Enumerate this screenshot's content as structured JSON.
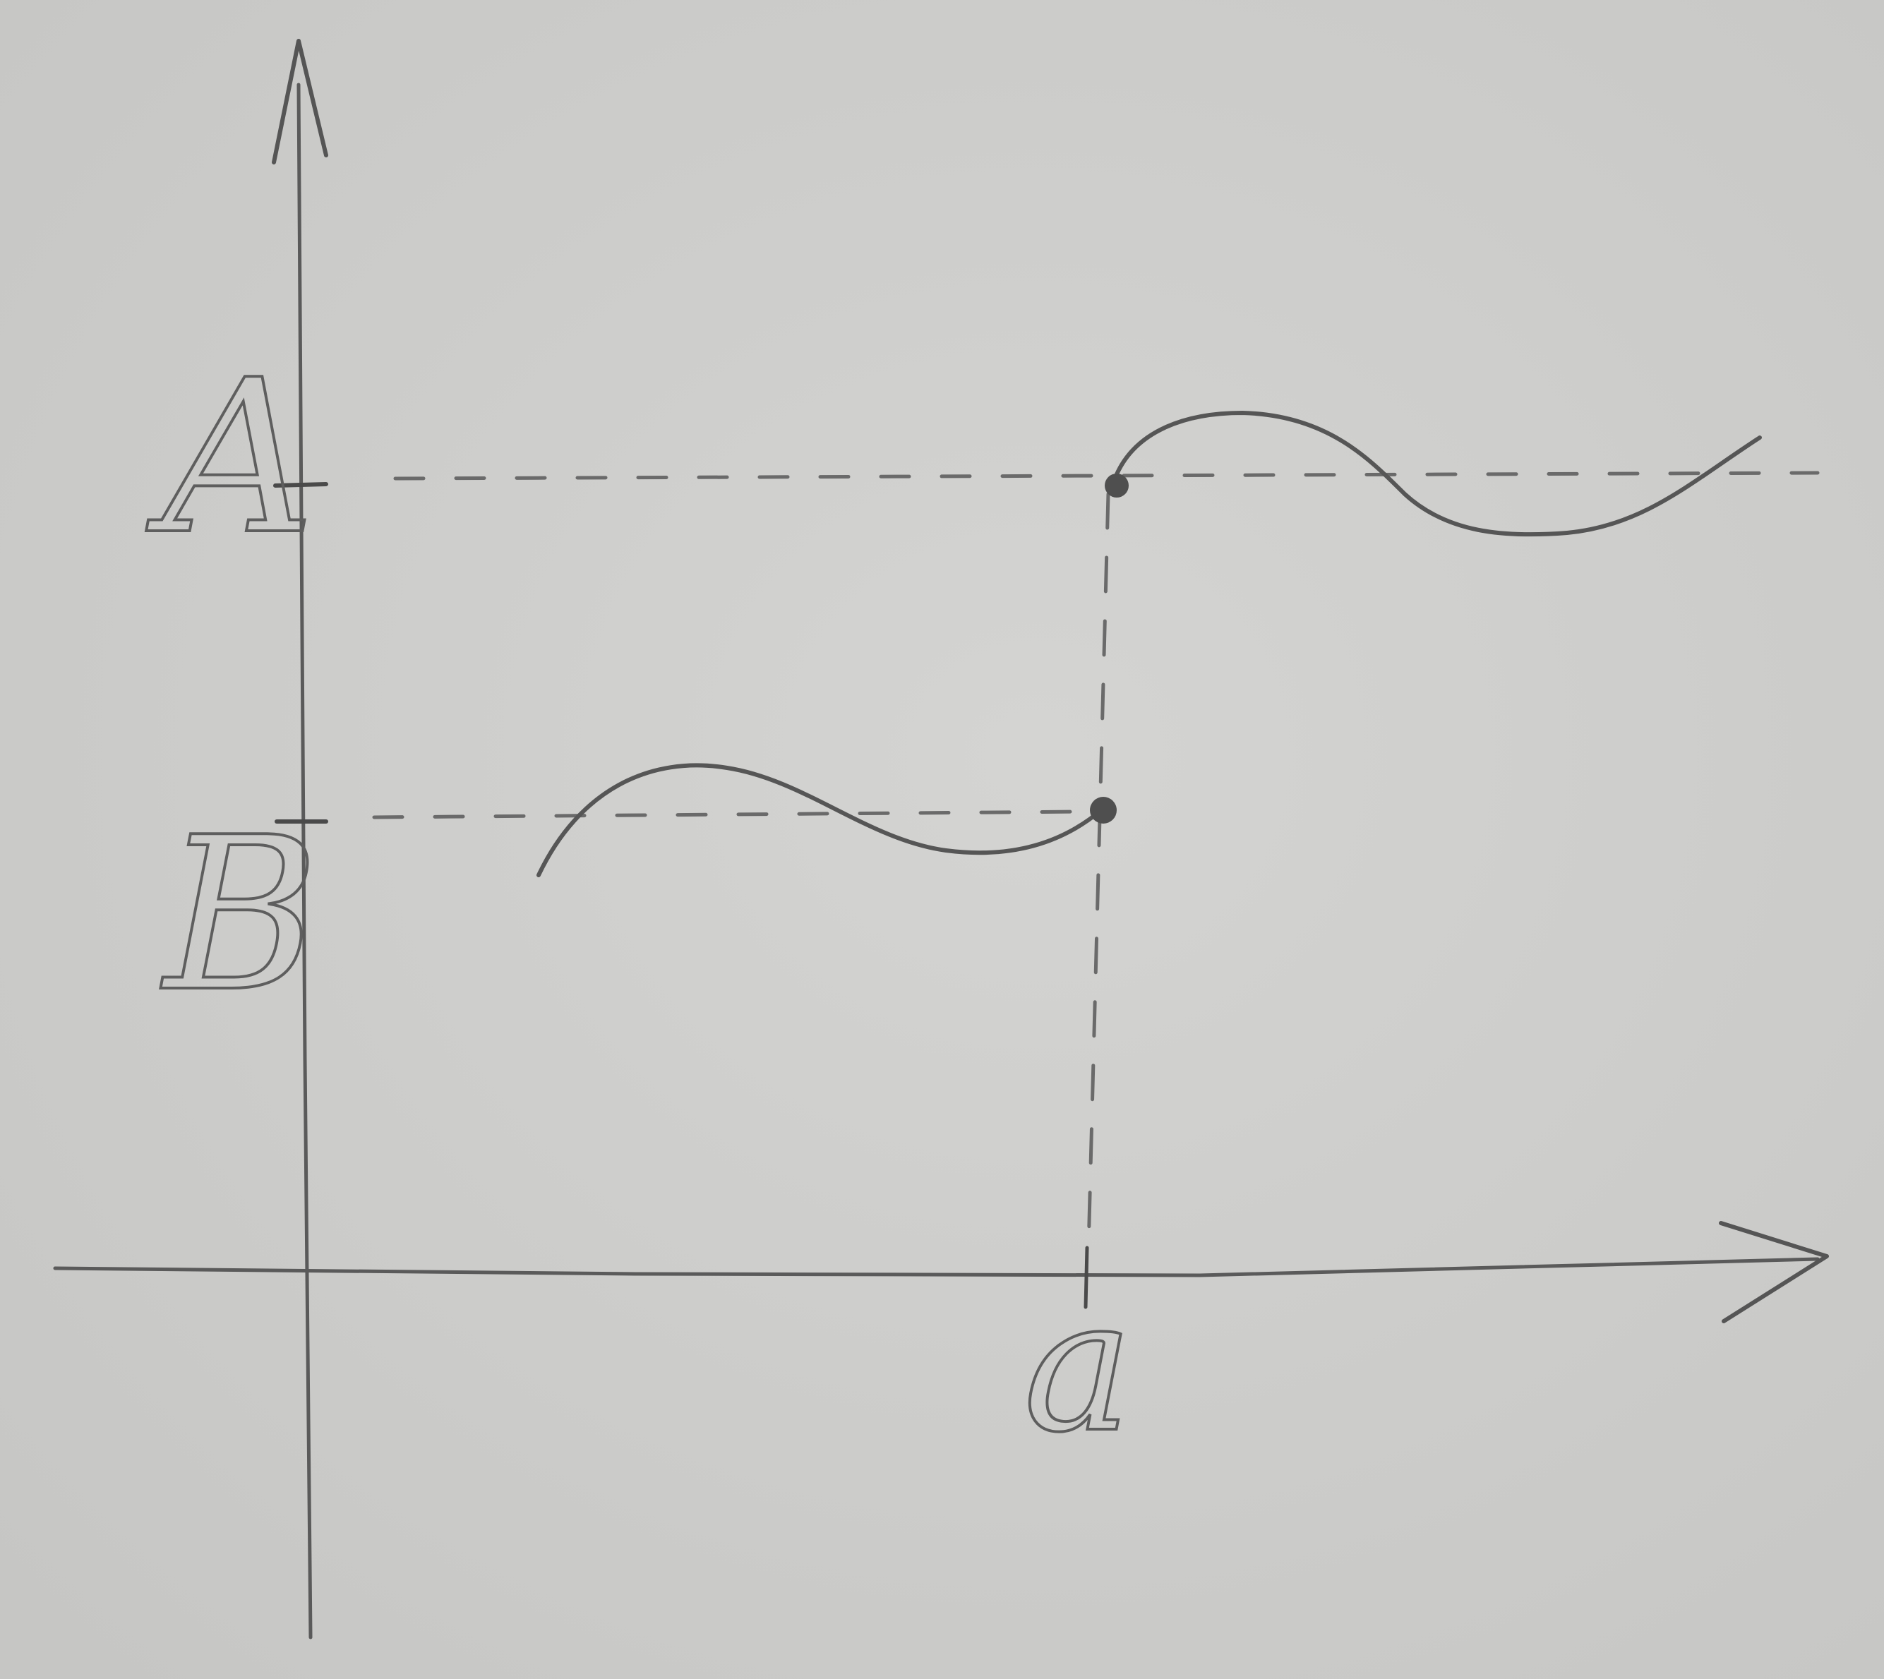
{
  "labels": {
    "y_upper": "A",
    "y_lower": "B",
    "x_mark": "a"
  },
  "colors": {
    "paper": "#cfcfcd",
    "pencil": "#5a5a5a",
    "pencil_light": "#6c6c6c"
  }
}
